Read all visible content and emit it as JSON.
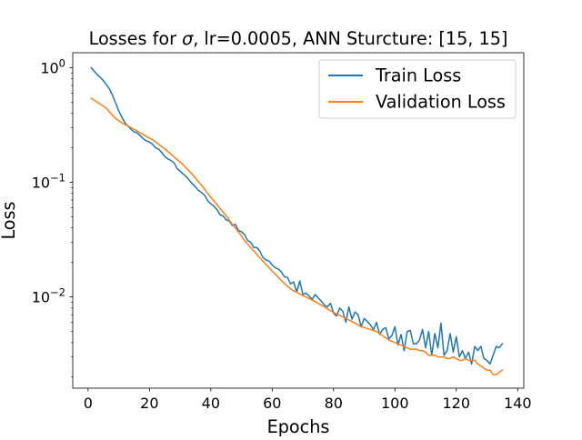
{
  "chart_data": {
    "type": "line",
    "title": "Losses for σ, lr=0.0005, ANN Sturcture: [15, 15]",
    "title_prefix": "Losses for ",
    "title_symbol": "σ",
    "title_suffix": ", lr=0.0005, ANN Sturcture: [15, 15]",
    "xlabel": "Epochs",
    "ylabel": "Loss",
    "yscale": "log",
    "xlim": [
      -5,
      142
    ],
    "ylim": [
      0.0016,
      1.35
    ],
    "xticks": [
      0,
      20,
      40,
      60,
      80,
      100,
      120,
      140
    ],
    "yticks": [
      {
        "value": 1,
        "base": "10",
        "exp": "0"
      },
      {
        "value": 0.1,
        "base": "10",
        "exp": "−1"
      },
      {
        "value": 0.01,
        "base": "10",
        "exp": "−2"
      }
    ],
    "grid": false,
    "legend_position": "top-right",
    "series": [
      {
        "name": "Train Loss",
        "color": "#1f77b4",
        "x": [
          1,
          2,
          3,
          4,
          5,
          6,
          7,
          8,
          9,
          10,
          11,
          12,
          13,
          14,
          15,
          16,
          17,
          18,
          19,
          20,
          21,
          22,
          23,
          24,
          25,
          26,
          27,
          28,
          29,
          30,
          31,
          32,
          33,
          34,
          35,
          36,
          37,
          38,
          39,
          40,
          41,
          42,
          43,
          44,
          45,
          46,
          47,
          48,
          49,
          50,
          51,
          52,
          53,
          54,
          55,
          56,
          57,
          58,
          59,
          60,
          61,
          62,
          63,
          64,
          65,
          66,
          67,
          68,
          69,
          70,
          71,
          72,
          73,
          74,
          75,
          76,
          77,
          78,
          79,
          80,
          81,
          82,
          83,
          84,
          85,
          86,
          87,
          88,
          89,
          90,
          91,
          92,
          93,
          94,
          95,
          96,
          97,
          98,
          99,
          100,
          101,
          102,
          103,
          104,
          105,
          106,
          107,
          108,
          109,
          110,
          111,
          112,
          113,
          114,
          115,
          116,
          117,
          118,
          119,
          120,
          121,
          122,
          123,
          124,
          125,
          126,
          127,
          128,
          129,
          130,
          131,
          132,
          133,
          134,
          135
        ],
        "y": [
          1.0,
          0.93,
          0.87,
          0.82,
          0.77,
          0.71,
          0.65,
          0.57,
          0.49,
          0.42,
          0.37,
          0.33,
          0.31,
          0.29,
          0.275,
          0.27,
          0.255,
          0.24,
          0.23,
          0.225,
          0.215,
          0.2,
          0.195,
          0.182,
          0.168,
          0.16,
          0.155,
          0.148,
          0.132,
          0.125,
          0.118,
          0.112,
          0.104,
          0.097,
          0.091,
          0.085,
          0.081,
          0.077,
          0.069,
          0.065,
          0.062,
          0.058,
          0.052,
          0.051,
          0.047,
          0.046,
          0.042,
          0.043,
          0.038,
          0.037,
          0.035,
          0.031,
          0.03,
          0.027,
          0.027,
          0.025,
          0.022,
          0.021,
          0.0205,
          0.019,
          0.018,
          0.0175,
          0.0165,
          0.015,
          0.0148,
          0.013,
          0.0135,
          0.011,
          0.0138,
          0.0105,
          0.0108,
          0.0102,
          0.0095,
          0.0105,
          0.0098,
          0.0092,
          0.0085,
          0.0082,
          0.0088,
          0.0072,
          0.0068,
          0.008,
          0.0075,
          0.006,
          0.0082,
          0.0064,
          0.0074,
          0.007,
          0.0055,
          0.0065,
          0.0061,
          0.0057,
          0.0052,
          0.006,
          0.0047,
          0.0052,
          0.0054,
          0.0043,
          0.0046,
          0.0055,
          0.0038,
          0.0047,
          0.0034,
          0.005,
          0.0051,
          0.0039,
          0.0039,
          0.0042,
          0.0052,
          0.0036,
          0.005,
          0.0031,
          0.0048,
          0.0036,
          0.0059,
          0.0031,
          0.0034,
          0.0048,
          0.0033,
          0.0045,
          0.003,
          0.0034,
          0.0029,
          0.0033,
          0.0026,
          0.0037,
          0.0034,
          0.0037,
          0.0029,
          0.0028,
          0.0026,
          0.0031,
          0.0037,
          0.0036,
          0.0039
        ]
      },
      {
        "name": "Validation Loss",
        "color": "#ff7f0e",
        "x": [
          1,
          2,
          3,
          4,
          5,
          6,
          7,
          8,
          9,
          10,
          11,
          12,
          13,
          14,
          15,
          16,
          17,
          18,
          19,
          20,
          21,
          22,
          23,
          24,
          25,
          26,
          27,
          28,
          29,
          30,
          31,
          32,
          33,
          34,
          35,
          36,
          37,
          38,
          39,
          40,
          41,
          42,
          43,
          44,
          45,
          46,
          47,
          48,
          49,
          50,
          51,
          52,
          53,
          54,
          55,
          56,
          57,
          58,
          59,
          60,
          61,
          62,
          63,
          64,
          65,
          66,
          67,
          68,
          69,
          70,
          71,
          72,
          73,
          74,
          75,
          76,
          77,
          78,
          79,
          80,
          81,
          82,
          83,
          84,
          85,
          86,
          87,
          88,
          89,
          90,
          91,
          92,
          93,
          94,
          95,
          96,
          97,
          98,
          99,
          100,
          101,
          102,
          103,
          104,
          105,
          106,
          107,
          108,
          109,
          110,
          111,
          112,
          113,
          114,
          115,
          116,
          117,
          118,
          119,
          120,
          121,
          122,
          123,
          124,
          125,
          126,
          127,
          128,
          129,
          130,
          131,
          132,
          133,
          134,
          135
        ],
        "y": [
          0.54,
          0.52,
          0.5,
          0.48,
          0.46,
          0.44,
          0.41,
          0.385,
          0.36,
          0.345,
          0.33,
          0.32,
          0.31,
          0.3,
          0.29,
          0.28,
          0.27,
          0.262,
          0.252,
          0.243,
          0.235,
          0.225,
          0.215,
          0.205,
          0.196,
          0.186,
          0.176,
          0.167,
          0.158,
          0.15,
          0.142,
          0.133,
          0.125,
          0.117,
          0.109,
          0.101,
          0.094,
          0.087,
          0.08,
          0.074,
          0.069,
          0.064,
          0.059,
          0.055,
          0.051,
          0.047,
          0.043,
          0.04,
          0.037,
          0.034,
          0.031,
          0.029,
          0.027,
          0.0252,
          0.0235,
          0.022,
          0.0205,
          0.0192,
          0.018,
          0.0168,
          0.0158,
          0.0148,
          0.0139,
          0.0131,
          0.0124,
          0.0118,
          0.0113,
          0.011,
          0.0106,
          0.0103,
          0.01,
          0.0097,
          0.0094,
          0.0091,
          0.0088,
          0.0085,
          0.0082,
          0.0079,
          0.0076,
          0.0073,
          0.0071,
          0.0069,
          0.0067,
          0.0065,
          0.0063,
          0.0061,
          0.0059,
          0.0057,
          0.0055,
          0.0054,
          0.0053,
          0.0052,
          0.0051,
          0.005,
          0.0048,
          0.0046,
          0.0044,
          0.0042,
          0.0041,
          0.004,
          0.0039,
          0.0038,
          0.0037,
          0.0036,
          0.0035,
          0.0035,
          0.0035,
          0.0034,
          0.0034,
          0.0033,
          0.0031,
          0.0031,
          0.0031,
          0.003,
          0.003,
          0.003,
          0.0029,
          0.0029,
          0.003,
          0.0029,
          0.0028,
          0.0028,
          0.0029,
          0.0028,
          0.0028,
          0.0028,
          0.0026,
          0.0025,
          0.0024,
          0.0023,
          0.0023,
          0.0021,
          0.0021,
          0.0022,
          0.0023
        ]
      }
    ]
  }
}
